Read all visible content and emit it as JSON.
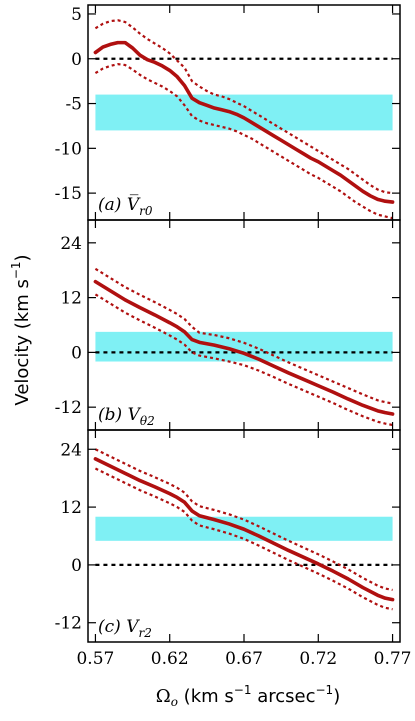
{
  "chart_data": [
    {
      "type": "line",
      "panel_label": "(a) V̅r0",
      "xlim": [
        0.565,
        0.775
      ],
      "ylim": [
        -18,
        6
      ],
      "yticks": [
        5,
        0,
        -5,
        -10,
        -15
      ],
      "ytick_labels": [
        "5",
        "0",
        "-5",
        "-10",
        "-15"
      ],
      "band": [
        -8.0,
        -4.0
      ],
      "reference_y": 0,
      "series": [
        {
          "role": "central",
          "style": "solid",
          "color": "#b01010",
          "x": [
            0.57,
            0.575,
            0.58,
            0.585,
            0.59,
            0.595,
            0.6,
            0.605,
            0.61,
            0.615,
            0.62,
            0.625,
            0.63,
            0.635,
            0.64,
            0.645,
            0.65,
            0.655,
            0.66,
            0.665,
            0.67,
            0.675,
            0.68,
            0.685,
            0.69,
            0.695,
            0.7,
            0.705,
            0.71,
            0.715,
            0.72,
            0.725,
            0.73,
            0.735,
            0.74,
            0.745,
            0.75,
            0.755,
            0.76,
            0.765,
            0.77
          ],
          "y": [
            0.7,
            1.3,
            1.6,
            1.8,
            1.8,
            1.2,
            0.4,
            -0.1,
            -0.4,
            -0.8,
            -1.3,
            -2.0,
            -3.0,
            -4.4,
            -4.9,
            -5.2,
            -5.5,
            -5.7,
            -5.9,
            -6.2,
            -6.6,
            -7.1,
            -7.6,
            -8.1,
            -8.6,
            -9.1,
            -9.6,
            -10.1,
            -10.6,
            -11.1,
            -11.5,
            -12.0,
            -12.5,
            -13.0,
            -13.6,
            -14.2,
            -14.8,
            -15.3,
            -15.7,
            -15.9,
            -16.0
          ]
        },
        {
          "role": "upper",
          "style": "dotted",
          "color": "#b01010",
          "x": [
            0.57,
            0.575,
            0.58,
            0.585,
            0.59,
            0.595,
            0.6,
            0.605,
            0.61,
            0.615,
            0.62,
            0.625,
            0.63,
            0.635,
            0.64,
            0.645,
            0.65,
            0.655,
            0.66,
            0.665,
            0.67,
            0.675,
            0.68,
            0.685,
            0.69,
            0.695,
            0.7,
            0.705,
            0.71,
            0.715,
            0.72,
            0.725,
            0.73,
            0.735,
            0.74,
            0.745,
            0.75,
            0.755,
            0.76,
            0.765,
            0.77
          ],
          "y": [
            3.4,
            3.9,
            4.2,
            4.3,
            4.1,
            3.5,
            2.8,
            2.2,
            1.7,
            1.2,
            0.6,
            -0.2,
            -1.0,
            -2.5,
            -3.1,
            -3.6,
            -4.0,
            -4.2,
            -4.5,
            -4.9,
            -5.3,
            -5.8,
            -6.3,
            -6.8,
            -7.3,
            -7.8,
            -8.3,
            -8.8,
            -9.3,
            -9.8,
            -10.3,
            -10.8,
            -11.3,
            -11.8,
            -12.3,
            -12.9,
            -13.5,
            -14.1,
            -14.6,
            -14.9,
            -15.0
          ]
        },
        {
          "role": "lower",
          "style": "dotted",
          "color": "#b01010",
          "x": [
            0.57,
            0.575,
            0.58,
            0.585,
            0.59,
            0.595,
            0.6,
            0.605,
            0.61,
            0.615,
            0.62,
            0.625,
            0.63,
            0.635,
            0.64,
            0.645,
            0.65,
            0.655,
            0.66,
            0.665,
            0.67,
            0.675,
            0.68,
            0.685,
            0.69,
            0.695,
            0.7,
            0.705,
            0.71,
            0.715,
            0.72,
            0.725,
            0.73,
            0.735,
            0.74,
            0.745,
            0.75,
            0.755,
            0.76,
            0.765,
            0.77
          ],
          "y": [
            -1.6,
            -1.1,
            -0.8,
            -0.6,
            -0.7,
            -1.2,
            -1.8,
            -2.3,
            -2.7,
            -3.1,
            -3.6,
            -4.2,
            -5.2,
            -6.4,
            -6.9,
            -7.2,
            -7.4,
            -7.6,
            -7.8,
            -8.1,
            -8.5,
            -8.9,
            -9.4,
            -9.9,
            -10.4,
            -10.9,
            -11.4,
            -11.9,
            -12.4,
            -12.9,
            -13.3,
            -13.8,
            -14.3,
            -14.8,
            -15.4,
            -16.0,
            -16.5,
            -17.0,
            -17.4,
            -17.6,
            -17.8
          ]
        }
      ]
    },
    {
      "type": "line",
      "panel_label": "(b) Vθ2",
      "xlim": [
        0.565,
        0.775
      ],
      "ylim": [
        -17,
        29
      ],
      "yticks": [
        24,
        12,
        0,
        -12
      ],
      "ytick_labels": [
        "24",
        "12",
        "0",
        "-12"
      ],
      "band": [
        -2.0,
        4.5
      ],
      "reference_y": 0,
      "series": [
        {
          "role": "central",
          "style": "solid",
          "color": "#b01010",
          "x": [
            0.57,
            0.58,
            0.59,
            0.6,
            0.61,
            0.62,
            0.625,
            0.63,
            0.635,
            0.64,
            0.65,
            0.66,
            0.67,
            0.68,
            0.69,
            0.7,
            0.71,
            0.72,
            0.73,
            0.74,
            0.75,
            0.76,
            0.765,
            0.77
          ],
          "y": [
            15.5,
            13.5,
            11.5,
            9.8,
            8.2,
            6.5,
            5.6,
            4.5,
            2.8,
            2.2,
            1.6,
            0.8,
            -0.2,
            -1.5,
            -3.0,
            -4.5,
            -5.9,
            -7.3,
            -8.7,
            -10.2,
            -11.6,
            -12.8,
            -13.2,
            -13.5
          ]
        },
        {
          "role": "upper",
          "style": "dotted",
          "color": "#b01010",
          "x": [
            0.57,
            0.58,
            0.59,
            0.6,
            0.61,
            0.62,
            0.625,
            0.63,
            0.635,
            0.64,
            0.65,
            0.66,
            0.67,
            0.68,
            0.69,
            0.7,
            0.71,
            0.72,
            0.73,
            0.74,
            0.75,
            0.76,
            0.765,
            0.77
          ],
          "y": [
            18.3,
            16.3,
            14.3,
            12.6,
            11.0,
            9.3,
            8.4,
            7.3,
            5.6,
            4.3,
            3.8,
            3.1,
            2.1,
            0.8,
            -0.7,
            -2.2,
            -3.6,
            -5.0,
            -6.4,
            -7.8,
            -9.2,
            -10.5,
            -10.9,
            -11.2
          ]
        },
        {
          "role": "lower",
          "style": "dotted",
          "color": "#b01010",
          "x": [
            0.57,
            0.58,
            0.59,
            0.6,
            0.61,
            0.62,
            0.625,
            0.63,
            0.635,
            0.64,
            0.65,
            0.66,
            0.67,
            0.68,
            0.69,
            0.7,
            0.71,
            0.72,
            0.73,
            0.74,
            0.75,
            0.76,
            0.765,
            0.77
          ],
          "y": [
            12.7,
            10.7,
            8.7,
            7.0,
            5.4,
            3.7,
            2.8,
            1.7,
            0.0,
            -0.7,
            -1.3,
            -2.0,
            -2.8,
            -4.0,
            -5.4,
            -6.9,
            -8.3,
            -9.7,
            -11.1,
            -12.6,
            -14.0,
            -15.2,
            -15.6,
            -15.9
          ]
        }
      ]
    },
    {
      "type": "line",
      "panel_label": "(c) Vr2",
      "xlim": [
        0.565,
        0.775
      ],
      "ylim": [
        -16,
        28
      ],
      "yticks": [
        24,
        12,
        0,
        -12
      ],
      "ytick_labels": [
        "24",
        "12",
        "0",
        "-12"
      ],
      "band": [
        5.0,
        10.0
      ],
      "reference_y": 0,
      "series": [
        {
          "role": "central",
          "style": "solid",
          "color": "#b01010",
          "x": [
            0.57,
            0.58,
            0.59,
            0.6,
            0.61,
            0.62,
            0.625,
            0.63,
            0.635,
            0.64,
            0.65,
            0.66,
            0.67,
            0.68,
            0.69,
            0.7,
            0.71,
            0.72,
            0.73,
            0.74,
            0.75,
            0.76,
            0.765,
            0.77
          ],
          "y": [
            22.0,
            20.5,
            19.0,
            17.5,
            16.2,
            14.8,
            14.0,
            13.0,
            11.2,
            10.2,
            9.4,
            8.5,
            7.4,
            6.0,
            4.5,
            3.0,
            1.6,
            0.2,
            -1.3,
            -2.9,
            -4.7,
            -6.3,
            -6.9,
            -7.2
          ]
        },
        {
          "role": "upper",
          "style": "dotted",
          "color": "#b01010",
          "x": [
            0.57,
            0.58,
            0.59,
            0.6,
            0.61,
            0.62,
            0.625,
            0.63,
            0.635,
            0.64,
            0.65,
            0.66,
            0.67,
            0.68,
            0.69,
            0.7,
            0.71,
            0.72,
            0.73,
            0.74,
            0.75,
            0.76,
            0.765,
            0.77
          ],
          "y": [
            24.0,
            22.5,
            21.0,
            19.5,
            18.2,
            16.8,
            16.0,
            15.0,
            13.2,
            12.2,
            11.4,
            10.5,
            9.4,
            8.0,
            6.5,
            5.0,
            3.6,
            2.2,
            0.7,
            -0.9,
            -2.7,
            -4.3,
            -4.9,
            -5.2
          ]
        },
        {
          "role": "lower",
          "style": "dotted",
          "color": "#b01010",
          "x": [
            0.57,
            0.58,
            0.59,
            0.6,
            0.61,
            0.62,
            0.625,
            0.63,
            0.635,
            0.64,
            0.65,
            0.66,
            0.67,
            0.68,
            0.69,
            0.7,
            0.71,
            0.72,
            0.73,
            0.74,
            0.75,
            0.76,
            0.765,
            0.77
          ],
          "y": [
            20.0,
            18.5,
            17.0,
            15.5,
            14.2,
            12.8,
            12.0,
            11.0,
            9.2,
            8.2,
            7.4,
            6.5,
            5.4,
            4.0,
            2.5,
            1.0,
            -0.4,
            -1.8,
            -3.3,
            -4.9,
            -6.7,
            -8.3,
            -8.9,
            -9.2
          ]
        }
      ]
    }
  ],
  "xticks": [
    0.57,
    0.62,
    0.67,
    0.72,
    0.77
  ],
  "xtick_labels": [
    "0.57",
    "0.62",
    "0.67",
    "0.72",
    "0.77"
  ],
  "xlabel": "Ωo (km s⁻¹ arcsec⁻¹)",
  "ylabel": "Velocity (km s⁻¹)",
  "colors": {
    "band": "#7ff0f4",
    "line": "#b01010",
    "reference": "#000000",
    "frame": "#000000"
  }
}
